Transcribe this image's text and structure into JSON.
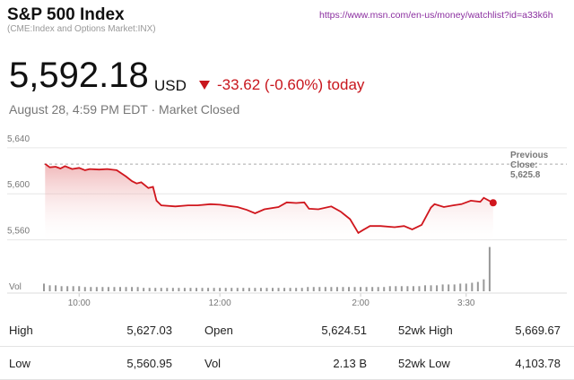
{
  "header": {
    "title": "S&P 500 Index",
    "url": "https://www.msn.com/en-us/money/watchlist?id=a33k6h",
    "subtitle": "(CME:Index and Options Market:INX)",
    "price": "5,592.18",
    "currency": "USD",
    "change": "-33.62 (-0.60%) today",
    "timestamp": "August 28, 4:59 PM EDT · Market Closed"
  },
  "chart_data": [
    {
      "type": "line",
      "color": "#d0161d",
      "x": [
        571,
        575,
        580,
        584,
        588,
        594,
        600,
        605,
        609,
        617,
        624,
        632,
        640,
        645,
        649,
        653,
        659,
        663,
        666,
        670,
        682,
        693,
        701,
        712,
        720,
        727,
        735,
        743,
        750,
        758,
        770,
        777,
        785,
        792,
        796,
        804,
        815,
        823,
        831,
        838,
        842,
        848,
        857,
        869,
        877,
        884,
        892,
        900,
        903,
        911,
        919,
        926,
        934,
        942,
        945,
        953
      ],
      "values": [
        5626,
        5623,
        5623.5,
        5622,
        5624,
        5621.5,
        5622.5,
        5620.5,
        5621.5,
        5621,
        5621.5,
        5620.5,
        5615,
        5611,
        5609,
        5610,
        5605,
        5606,
        5594,
        5590,
        5589,
        5590,
        5590,
        5591,
        5590.5,
        5589.5,
        5588.5,
        5586,
        5583,
        5586.5,
        5588.5,
        5592.5,
        5592,
        5592.5,
        5587,
        5586.5,
        5589,
        5584.5,
        5578,
        5566,
        5568.5,
        5572,
        5572,
        5571,
        5572,
        5569,
        5573,
        5588,
        5591,
        5588.5,
        5590,
        5591,
        5594,
        5593,
        5596.5,
        5592.18
      ],
      "xlim": [
        570,
        960
      ],
      "xticks": [
        {
          "value": 600,
          "label": "10:00"
        },
        {
          "value": 720,
          "label": "12:00"
        },
        {
          "value": 840,
          "label": "2:00"
        },
        {
          "value": 930,
          "label": "3:30"
        }
      ],
      "ylim": [
        5555,
        5650
      ],
      "yticks": [
        {
          "value": 5560,
          "label": "5,560"
        },
        {
          "value": 5600,
          "label": "5,600"
        },
        {
          "value": 5640,
          "label": "5,640"
        }
      ],
      "grid": true,
      "reference": {
        "label": "Previous Close:",
        "value": 5625.8,
        "value_label": "5,625.8"
      }
    },
    {
      "type": "bar",
      "label": "Vol",
      "color": "#999999",
      "x": [
        570,
        575,
        580,
        585,
        590,
        595,
        600,
        605,
        610,
        615,
        620,
        625,
        630,
        635,
        640,
        645,
        650,
        655,
        660,
        665,
        670,
        675,
        680,
        685,
        690,
        695,
        700,
        705,
        710,
        715,
        720,
        725,
        730,
        735,
        740,
        745,
        750,
        755,
        760,
        765,
        770,
        775,
        780,
        785,
        790,
        795,
        800,
        805,
        810,
        815,
        820,
        825,
        830,
        835,
        840,
        845,
        850,
        855,
        860,
        865,
        870,
        875,
        880,
        885,
        890,
        895,
        900,
        905,
        910,
        915,
        920,
        925,
        930,
        935,
        940,
        945,
        950
      ],
      "values": [
        9,
        7,
        7,
        6,
        6,
        6,
        6,
        5,
        5,
        5,
        5,
        5,
        5,
        5,
        5,
        5,
        5,
        4,
        4,
        4,
        4,
        4,
        4,
        4,
        4,
        4,
        4,
        4,
        4,
        4,
        4,
        4,
        4,
        4,
        4,
        4,
        4,
        4,
        4,
        4,
        4,
        4,
        4,
        4,
        4,
        5,
        5,
        5,
        5,
        5,
        5,
        5,
        5,
        5,
        5,
        5,
        5,
        5,
        5,
        6,
        6,
        6,
        6,
        6,
        6,
        7,
        7,
        7,
        8,
        8,
        8,
        9,
        9,
        10,
        11,
        14,
        52
      ],
      "xlim": [
        570,
        960
      ],
      "ylim": [
        0,
        60
      ]
    }
  ],
  "stats": [
    [
      {
        "label": "High",
        "value": "5,627.03"
      },
      {
        "label": "Open",
        "value": "5,624.51"
      },
      {
        "label": "52wk High",
        "value": "5,669.67"
      }
    ],
    [
      {
        "label": "Low",
        "value": "5,560.95"
      },
      {
        "label": "Vol",
        "value": "2.13 B"
      },
      {
        "label": "52wk Low",
        "value": "4,103.78"
      }
    ]
  ]
}
